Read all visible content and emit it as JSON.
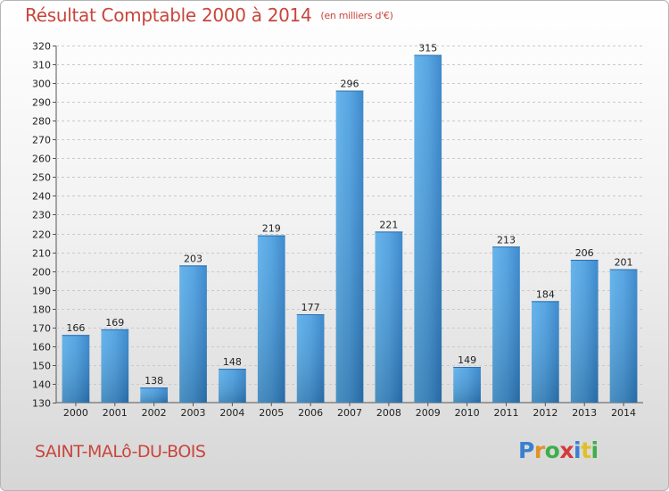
{
  "title": "Résultat Comptable 2000 à 2014",
  "unit_note": "(en milliers d'€)",
  "commune": "SAINT-MALô-DU-BOIS",
  "logo": {
    "letters": [
      "P",
      "r",
      "o",
      "x",
      "i",
      "t",
      "i"
    ],
    "colors": [
      "#3a7fd0",
      "#e0922a",
      "#3fae49",
      "#d43a3a",
      "#3a7fd0",
      "#e0c02a",
      "#3fae49"
    ]
  },
  "chart_data": {
    "type": "bar",
    "title": "Résultat Comptable 2000 à 2014",
    "categories": [
      "2000",
      "2001",
      "2002",
      "2003",
      "2004",
      "2005",
      "2006",
      "2007",
      "2008",
      "2009",
      "2010",
      "2011",
      "2012",
      "2013",
      "2014"
    ],
    "values": [
      166,
      169,
      138,
      203,
      148,
      219,
      177,
      296,
      221,
      315,
      149,
      213,
      184,
      206,
      201
    ],
    "ylim": [
      130,
      320
    ],
    "ytick_step": 10,
    "grid": true,
    "bar_color": "#4a9ee0"
  }
}
